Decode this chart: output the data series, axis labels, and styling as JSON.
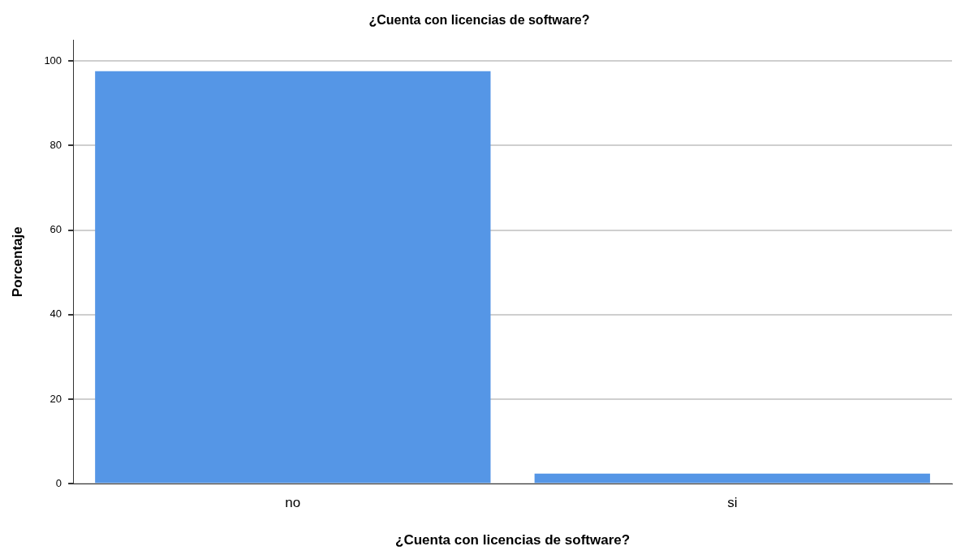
{
  "chart_data": {
    "type": "bar",
    "title": "¿Cuenta con licencias de software?",
    "xlabel": "¿Cuenta con licencias de software?",
    "ylabel": "Porcentaje",
    "categories": [
      "no",
      "si"
    ],
    "values": [
      97.6,
      2.4
    ],
    "color": "#5596e6",
    "ylim": [
      0,
      105
    ],
    "yticks": [
      0,
      20,
      40,
      60,
      80,
      100
    ],
    "grid": "y",
    "legend": false
  }
}
